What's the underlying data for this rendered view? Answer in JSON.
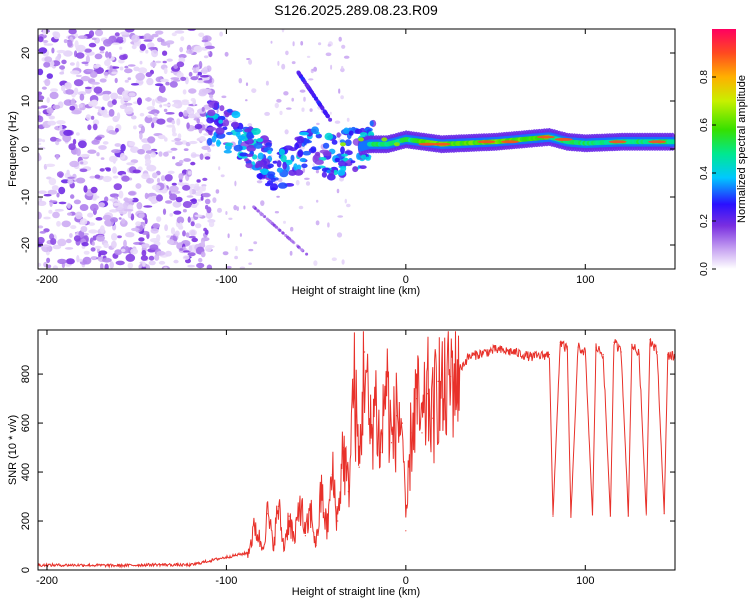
{
  "title": "S126.2025.289.08.23.R09",
  "chart_data": [
    {
      "type": "heatmap",
      "name": "spectrogram",
      "xlabel": "Height of straight line (km)",
      "ylabel": "Frequency (Hz)",
      "xlim": [
        -205,
        150
      ],
      "ylim": [
        -25,
        25
      ],
      "xticks": [
        -200,
        -100,
        0,
        100
      ],
      "yticks": [
        -20,
        -10,
        0,
        10,
        20
      ],
      "colorbar": {
        "label": "Normalized spectral amplitude",
        "range": [
          0,
          1
        ],
        "ticks": [
          "0.0",
          "0.2",
          "0.4",
          "0.6",
          "0.8"
        ]
      },
      "ridge_frequency_hz": [
        [
          -110,
          6
        ],
        [
          -100,
          4
        ],
        [
          -90,
          2
        ],
        [
          -80,
          -2
        ],
        [
          -70,
          -5
        ],
        [
          -60,
          -1
        ],
        [
          -50,
          0
        ],
        [
          -40,
          -2
        ],
        [
          -30,
          0
        ],
        [
          -20,
          1
        ],
        [
          -10,
          1
        ],
        [
          0,
          2
        ],
        [
          20,
          1
        ],
        [
          50,
          1.5
        ],
        [
          80,
          2.5
        ],
        [
          90,
          1.5
        ],
        [
          100,
          1.2
        ],
        [
          120,
          1.5
        ],
        [
          150,
          1.5
        ]
      ]
    },
    {
      "type": "line",
      "name": "snr",
      "xlabel": "Height of straight line (km)",
      "ylabel": "SNR (10 * v/v)",
      "xlim": [
        -205,
        150
      ],
      "ylim": [
        0,
        980
      ],
      "xticks": [
        -200,
        -100,
        0,
        100
      ],
      "yticks": [
        0,
        200,
        400,
        600,
        800
      ],
      "color": "#e8312a",
      "series": [
        {
          "name": "SNR",
          "x": [
            -205,
            -180,
            -160,
            -140,
            -120,
            -105,
            -95,
            -88,
            -84,
            -80,
            -77,
            -74,
            -71,
            -68,
            -65,
            -62,
            -59,
            -56,
            -53,
            -50,
            -47,
            -44,
            -41,
            -38,
            -35,
            -32,
            -29,
            -26,
            -23,
            -20,
            -17,
            -14,
            -11,
            -8,
            -5,
            -2,
            0,
            3,
            6,
            9,
            12,
            15,
            18,
            21,
            25,
            30,
            35,
            40,
            50,
            60,
            70,
            80,
            82,
            86,
            90,
            92,
            96,
            100,
            104,
            106,
            110,
            114,
            116,
            120,
            124,
            126,
            130,
            134,
            136,
            140,
            144,
            146,
            150
          ],
          "y": [
            20,
            20,
            18,
            22,
            20,
            45,
            60,
            70,
            180,
            90,
            230,
            100,
            260,
            90,
            220,
            110,
            290,
            140,
            240,
            100,
            320,
            160,
            390,
            200,
            500,
            320,
            780,
            420,
            890,
            530,
            700,
            480,
            800,
            520,
            630,
            600,
            160,
            560,
            700,
            560,
            720,
            620,
            770,
            690,
            790,
            820,
            870,
            880,
            900,
            890,
            870,
            880,
            220,
            930,
            900,
            215,
            910,
            890,
            225,
            910,
            880,
            220,
            930,
            890,
            220,
            920,
            880,
            225,
            940,
            890,
            230,
            880,
            870
          ]
        }
      ]
    }
  ]
}
